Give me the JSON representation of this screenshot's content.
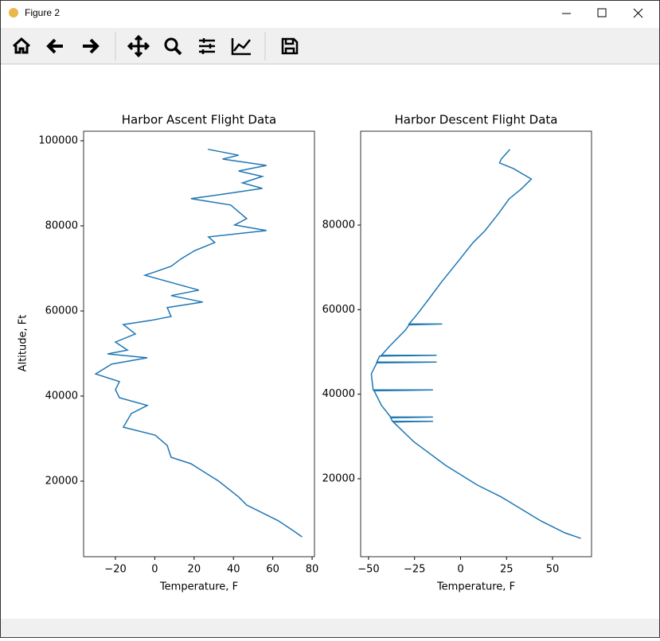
{
  "window": {
    "title": "Figure 2"
  },
  "chart_data": [
    {
      "type": "line",
      "title": "Harbor Ascent Flight Data",
      "x_label": "Temperature, F",
      "y_label": "Altitude, Ft",
      "xlim": [
        -36.2,
        81.2
      ],
      "ylim": [
        2243,
        102243
      ],
      "xticks": [
        {
          "value": -20,
          "label": "−20"
        },
        0,
        20,
        40,
        60,
        80
      ],
      "yticks": [
        20000,
        40000,
        60000,
        80000,
        100000
      ],
      "series": [
        {
          "color": "#1f77b4",
          "x": [
            27,
            42.6,
            34.5,
            56.8,
            42.6,
            54.7,
            44.6,
            54.7,
            38.6,
            18.4,
            38.6,
            46.7,
            40.6,
            56.8,
            27.3,
            30.5,
            20.4,
            13.5,
            8.3,
            0.2,
            -5,
            8.3,
            22.4,
            8.3,
            24.4,
            6.3,
            8.3,
            -1.8,
            -16,
            -9.9,
            -20,
            -13.9,
            -24,
            -3.8,
            -22,
            -30.1,
            -18,
            -20,
            -18,
            -3.8,
            -11.9,
            -16,
            0.2,
            6.3,
            8.3,
            18.4,
            32.5,
            42.6,
            46.7,
            62.8,
            70.9,
            74.9
          ],
          "values": [
            98000,
            96600,
            95700,
            94200,
            92900,
            91600,
            90100,
            88800,
            87700,
            86400,
            84900,
            81700,
            80200,
            78900,
            77400,
            76100,
            74200,
            72300,
            70500,
            69200,
            68400,
            66700,
            64900,
            63600,
            62100,
            60800,
            58700,
            57800,
            56800,
            54600,
            52700,
            50800,
            49900,
            49000,
            47500,
            45200,
            43400,
            41500,
            39600,
            37800,
            35900,
            32700,
            30800,
            28400,
            25600,
            24100,
            20000,
            16300,
            14400,
            10700,
            8200,
            6900
          ]
        }
      ]
    },
    {
      "type": "line",
      "title": "Harbor Descent Flight Data",
      "x_label": "Temperature, F",
      "xlim": [
        -54.3,
        71.2
      ],
      "ylim": [
        1560,
        102200
      ],
      "xticks": [
        {
          "value": -50,
          "label": "−50"
        },
        {
          "value": -25,
          "label": "−25"
        },
        0,
        25,
        50
      ],
      "yticks": [
        20000,
        40000,
        60000,
        80000
      ],
      "series": [
        {
          "color": "#1f77b4",
          "x": [
            26.8,
            22.1,
            21.2,
            28.6,
            38.5,
            32.9,
            26.4,
            20.8,
            13.4,
            6.9,
            -1.7,
            -10.4,
            -16.9,
            -23.4,
            -28,
            -10,
            -28,
            -29.9,
            -38.5,
            -43,
            -13,
            -44,
            -45.5,
            -13,
            -45.5,
            -48.5,
            -47.5,
            -15,
            -47,
            -42.9,
            -38,
            -15,
            -38,
            -37,
            -15,
            -36.5,
            -25.5,
            -8.2,
            9.1,
            22.1,
            43.7,
            56.7,
            65.4
          ],
          "values": [
            97900,
            95600,
            94700,
            93400,
            90900,
            88500,
            86200,
            82800,
            78700,
            75900,
            71200,
            66500,
            62700,
            59000,
            56600,
            56600,
            56400,
            55200,
            51400,
            49200,
            49200,
            49000,
            47600,
            47600,
            47400,
            44800,
            41000,
            41000,
            40800,
            37300,
            34600,
            34600,
            34400,
            33600,
            33600,
            33400,
            28800,
            23200,
            18500,
            15700,
            10000,
            7200,
            5900
          ]
        }
      ]
    }
  ]
}
